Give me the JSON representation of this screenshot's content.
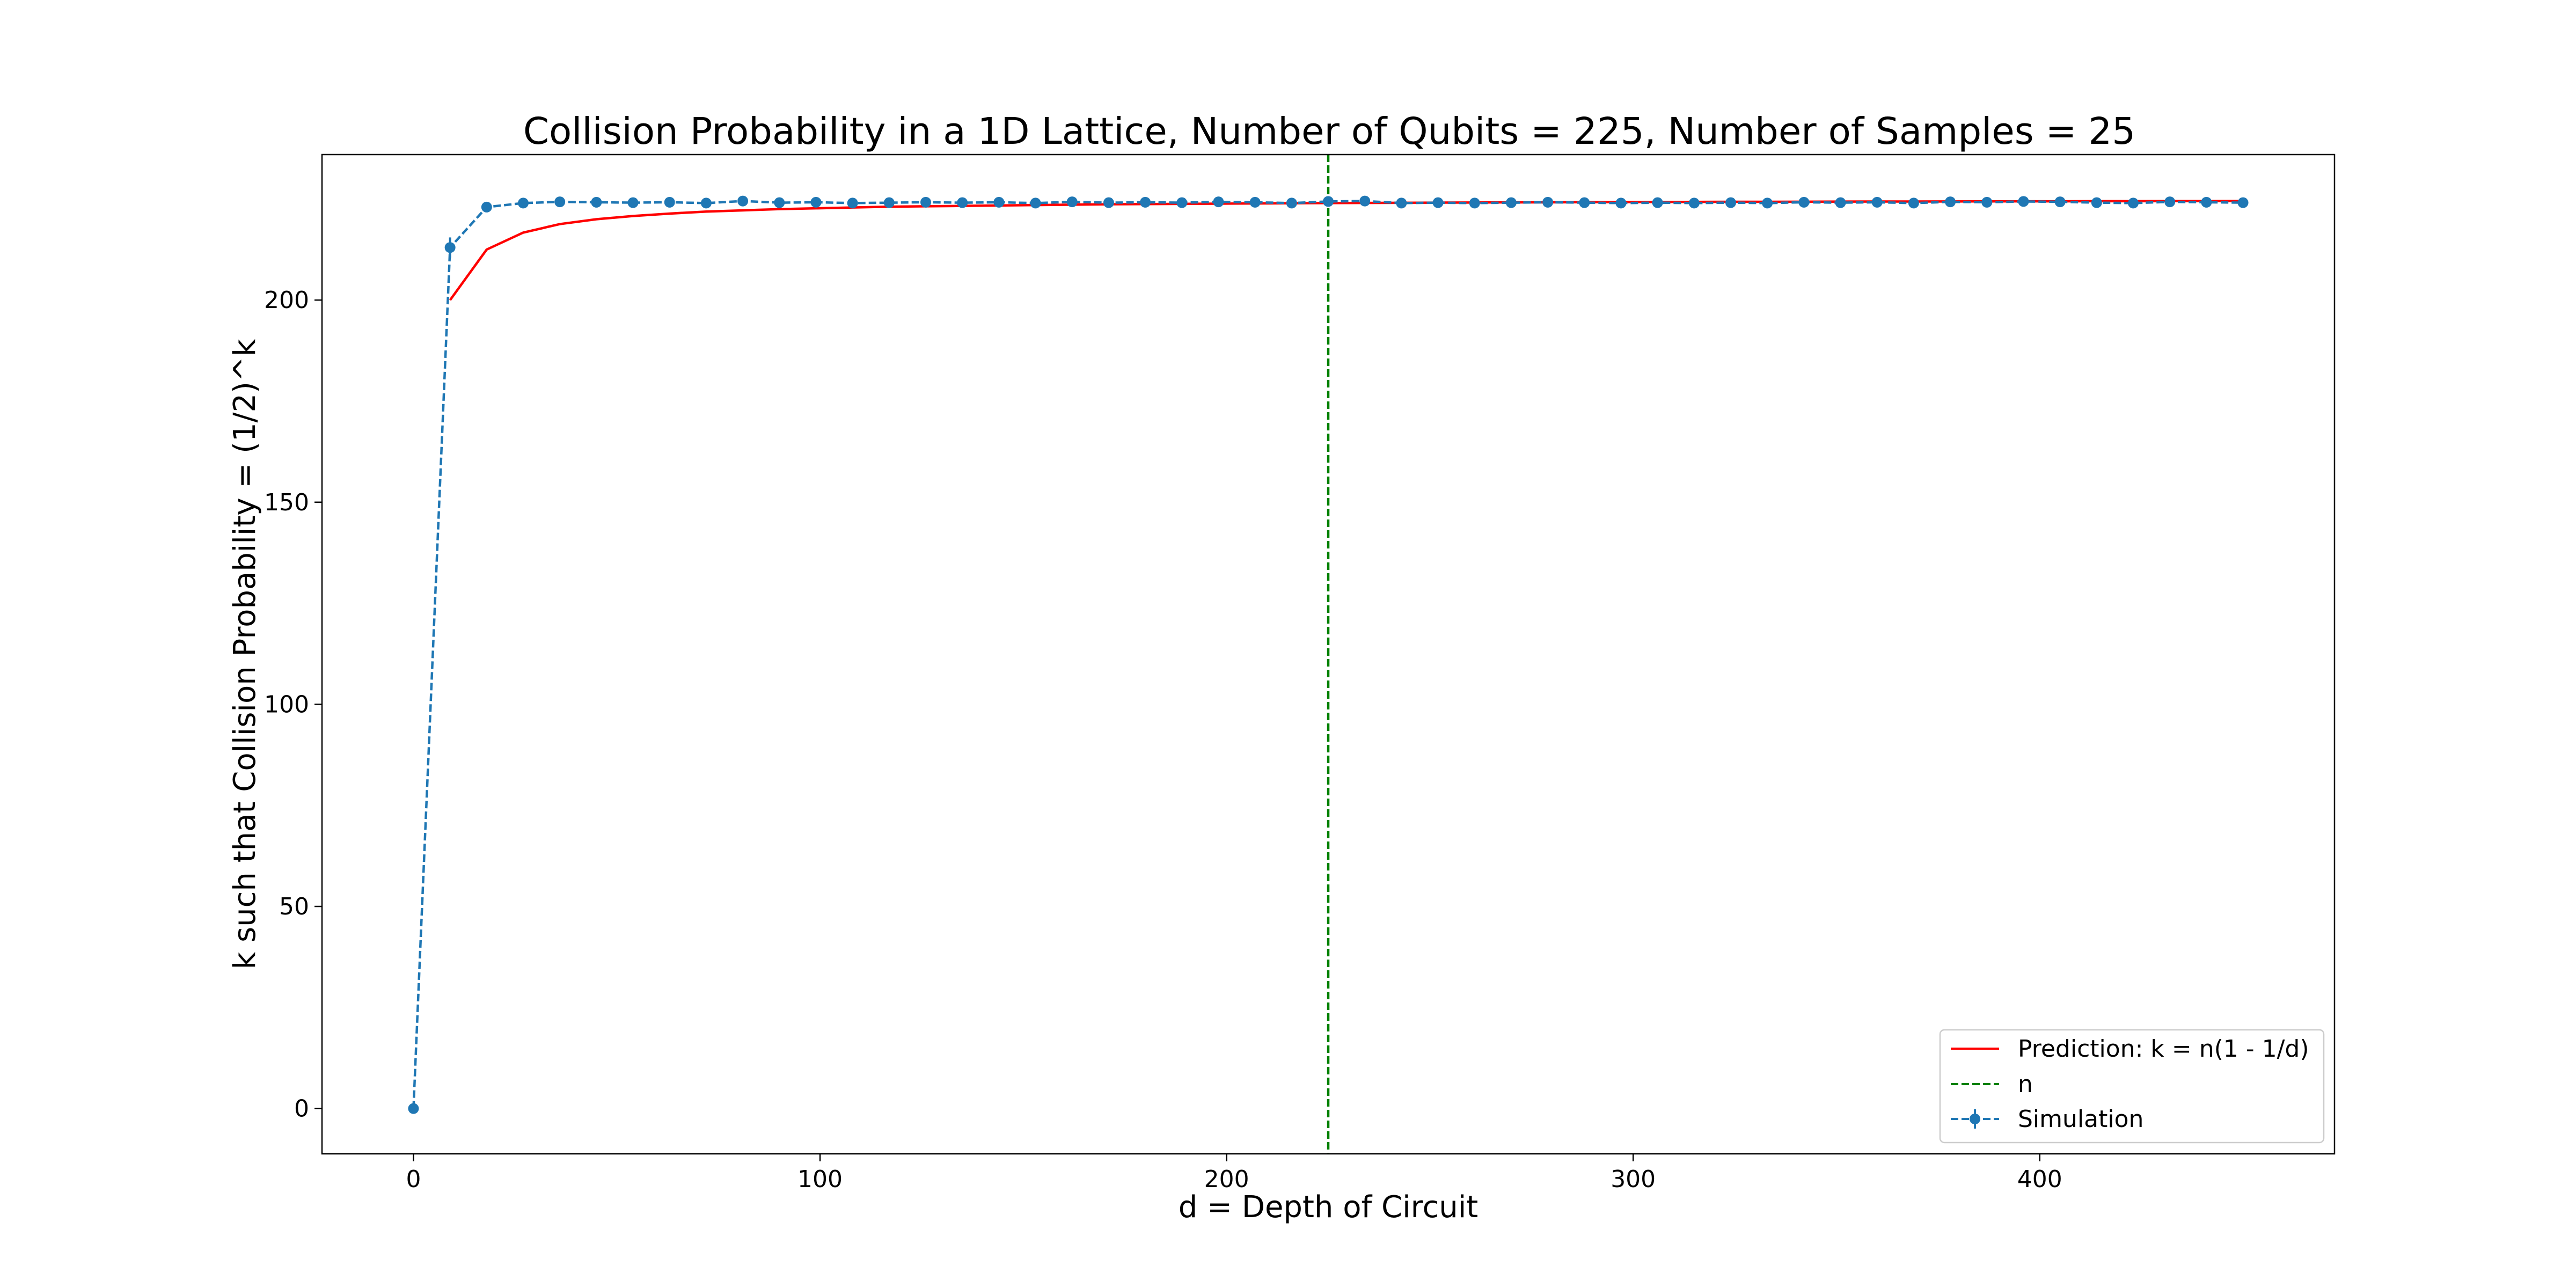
{
  "chart_data": {
    "type": "line",
    "title": "Collision Probability in a 1D Lattice, Number of Qubits = 225, Number of Samples = 25",
    "xlabel": "d = Depth of Circuit",
    "ylabel": "k such that Collision Probability = (1/2)^k",
    "xlim": [
      -22.5,
      472.5
    ],
    "ylim": [
      -11.2,
      236.0
    ],
    "x_ticks": [
      0,
      100,
      200,
      300,
      400
    ],
    "y_ticks": [
      0,
      50,
      100,
      150,
      200
    ],
    "grid": false,
    "legend_position": "lower right",
    "vline": {
      "name": "n",
      "x": 225,
      "color": "#008000",
      "style": "dashed"
    },
    "series": [
      {
        "name": "Prediction: k = n(1 - 1/d)",
        "color": "#ff0000",
        "style": "solid",
        "x": [
          9,
          18,
          27,
          36,
          45,
          54,
          63,
          72,
          81,
          90,
          99,
          108,
          117,
          126,
          135,
          144,
          153,
          162,
          171,
          180,
          189,
          198,
          207,
          216,
          225,
          234,
          243,
          252,
          261,
          270,
          279,
          288,
          297,
          306,
          315,
          324,
          333,
          342,
          351,
          360,
          369,
          378,
          387,
          396,
          405,
          414,
          423,
          432,
          441,
          450
        ],
        "y": [
          200.0,
          212.5,
          216.7,
          218.8,
          220.0,
          220.8,
          221.4,
          221.9,
          222.2,
          222.5,
          222.7,
          222.9,
          223.1,
          223.2,
          223.3,
          223.4,
          223.5,
          223.6,
          223.7,
          223.75,
          223.8,
          223.86,
          223.91,
          223.96,
          224.0,
          224.04,
          224.07,
          224.11,
          224.14,
          224.17,
          224.19,
          224.22,
          224.24,
          224.26,
          224.29,
          224.31,
          224.32,
          224.34,
          224.36,
          224.38,
          224.39,
          224.4,
          224.42,
          224.43,
          224.44,
          224.46,
          224.47,
          224.48,
          224.49,
          224.5
        ]
      },
      {
        "name": "Simulation",
        "color": "#1f77b4",
        "style": "dashed",
        "marker": "circle",
        "x": [
          0,
          9,
          18,
          27,
          36,
          45,
          54,
          63,
          72,
          81,
          90,
          99,
          108,
          117,
          126,
          135,
          144,
          153,
          162,
          171,
          180,
          189,
          198,
          207,
          216,
          225,
          234,
          243,
          252,
          261,
          270,
          279,
          288,
          297,
          306,
          315,
          324,
          333,
          342,
          351,
          360,
          369,
          378,
          387,
          396,
          405,
          414,
          423,
          432,
          441,
          450
        ],
        "y": [
          0,
          213,
          223,
          224,
          224.3,
          224.2,
          224.1,
          224.2,
          224.0,
          224.5,
          224.1,
          224.2,
          224.0,
          224.1,
          224.2,
          224.1,
          224.2,
          224.0,
          224.3,
          224.1,
          224.2,
          224.1,
          224.3,
          224.2,
          224.0,
          224.4,
          224.5,
          224.0,
          224.1,
          224.0,
          224.1,
          224.2,
          224.1,
          224.0,
          224.1,
          224.0,
          224.1,
          224.0,
          224.2,
          224.1,
          224.2,
          224.0,
          224.3,
          224.2,
          224.4,
          224.3,
          224.1,
          224.0,
          224.3,
          224.2,
          224.1
        ],
        "err": [
          0,
          2.5,
          1.0,
          0.5,
          0.4,
          0.4,
          0.4,
          0.4,
          0.4,
          0.4,
          0.4,
          0.4,
          0.4,
          0.4,
          0.4,
          0.4,
          0.4,
          0.4,
          0.4,
          0.4,
          0.4,
          0.4,
          0.4,
          0.4,
          0.4,
          0.4,
          0.4,
          0.4,
          0.4,
          0.4,
          0.4,
          0.4,
          0.4,
          0.4,
          0.4,
          0.4,
          0.4,
          0.4,
          0.4,
          0.4,
          0.4,
          0.4,
          0.4,
          0.4,
          0.4,
          0.4,
          0.4,
          0.4,
          0.4,
          0.4,
          0.4
        ]
      }
    ]
  }
}
